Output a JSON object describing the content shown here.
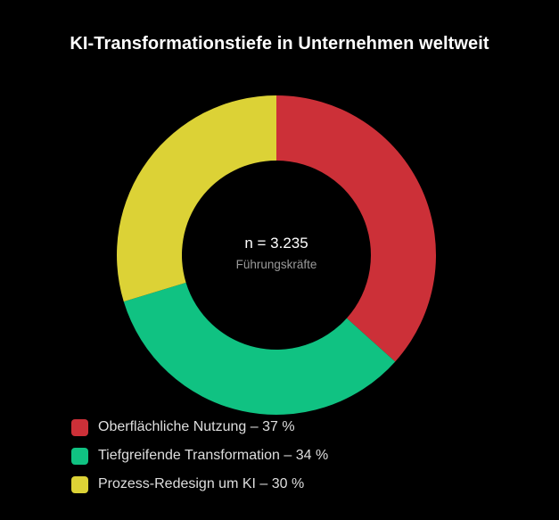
{
  "chart_data": {
    "type": "pie",
    "title": "KI-Transformationstiefe in Unternehmen weltweit",
    "center": {
      "main": "n = 3.235",
      "sub": "Führungskräfte"
    },
    "slices": [
      {
        "label": "Oberflächliche Nutzung – 37 %",
        "value": 37,
        "color": "#cc3038"
      },
      {
        "label": "Tiefgreifende Transformation – 34 %",
        "value": 34,
        "color": "#10c282"
      },
      {
        "label": "Prozess-Redesign um KI – 30 %",
        "value": 30,
        "color": "#dcd236"
      }
    ],
    "legend_position": "bottom-left"
  }
}
